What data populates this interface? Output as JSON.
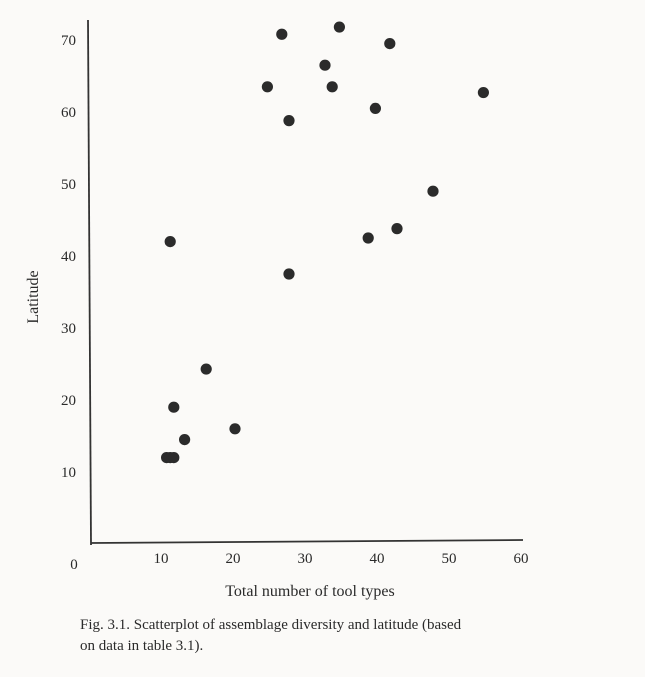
{
  "chart_data": {
    "type": "scatter",
    "title": "",
    "xlabel": "Total number of tool types",
    "ylabel": "Latitude",
    "xlim": [
      0,
      60
    ],
    "ylim": [
      0,
      73
    ],
    "xticks": [
      10,
      20,
      30,
      40,
      50,
      60
    ],
    "yticks": [
      10,
      20,
      30,
      40,
      50,
      60,
      70
    ],
    "origin_label": "0",
    "grid": false,
    "legend": "none",
    "series": [
      {
        "points": [
          {
            "x": 10.5,
            "y": 12
          },
          {
            "x": 11.0,
            "y": 12
          },
          {
            "x": 11.5,
            "y": 12
          },
          {
            "x": 13.0,
            "y": 14.5
          },
          {
            "x": 11.5,
            "y": 19
          },
          {
            "x": 20.0,
            "y": 16
          },
          {
            "x": 16.0,
            "y": 24.3
          },
          {
            "x": 11.0,
            "y": 42
          },
          {
            "x": 27.5,
            "y": 37.5
          },
          {
            "x": 24.5,
            "y": 63.5
          },
          {
            "x": 26.5,
            "y": 70.8
          },
          {
            "x": 27.5,
            "y": 58.8
          },
          {
            "x": 32.5,
            "y": 66.5
          },
          {
            "x": 33.5,
            "y": 63.5
          },
          {
            "x": 34.5,
            "y": 71.8
          },
          {
            "x": 39.5,
            "y": 60.5
          },
          {
            "x": 41.5,
            "y": 69.5
          },
          {
            "x": 38.5,
            "y": 42.5
          },
          {
            "x": 42.5,
            "y": 43.8
          },
          {
            "x": 47.5,
            "y": 49
          },
          {
            "x": 54.5,
            "y": 62.7
          }
        ]
      }
    ]
  },
  "caption": {
    "line1": "Fig. 3.1. Scatterplot of assemblage diversity and latitude (based",
    "line2": "on data in table 3.1)."
  }
}
